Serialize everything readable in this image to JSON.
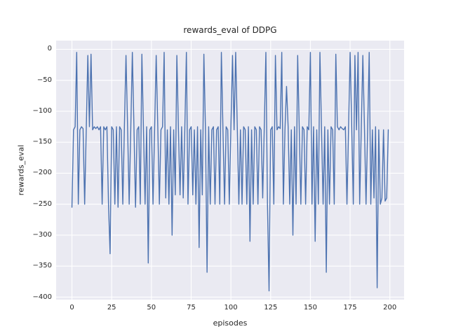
{
  "chart_data": {
    "type": "line",
    "title": "rewards_eval of DDPG",
    "xlabel": "episodes",
    "ylabel": "rewards_eval",
    "legend": null,
    "grid": true,
    "background": "#eaeaf2",
    "line_color": "#4c72b0",
    "xlim": [
      -9.95,
      208.95
    ],
    "ylim": [
      -404,
      14
    ],
    "x_ticks": [
      0,
      25,
      50,
      75,
      100,
      125,
      150,
      175,
      200
    ],
    "x_tick_labels": [
      "0",
      "25",
      "50",
      "75",
      "100",
      "125",
      "150",
      "175",
      "200"
    ],
    "y_ticks": [
      0,
      -50,
      -100,
      -150,
      -200,
      -250,
      -300,
      -350,
      -400
    ],
    "y_tick_labels": [
      "0",
      "−50",
      "−100",
      "−150",
      "−200",
      "−250",
      "−300",
      "−350",
      "−400"
    ],
    "series": [
      {
        "name": "rewards_eval",
        "x_is_index": true,
        "values": [
          -255,
          -130,
          -125,
          -5,
          -250,
          -130,
          -125,
          -128,
          -250,
          -130,
          -10,
          -125,
          -8,
          -130,
          -125,
          -128,
          -125,
          -130,
          -125,
          -250,
          -125,
          -130,
          -125,
          -250,
          -330,
          -125,
          -130,
          -250,
          -125,
          -255,
          -125,
          -130,
          -250,
          -125,
          -10,
          -125,
          -250,
          -130,
          -5,
          -125,
          -255,
          -130,
          -125,
          -250,
          -8,
          -130,
          -250,
          -125,
          -345,
          -130,
          -125,
          -250,
          -130,
          -10,
          -125,
          -250,
          -130,
          -125,
          -5,
          -240,
          -130,
          -250,
          -125,
          -300,
          -130,
          -235,
          -10,
          -130,
          -235,
          -125,
          -240,
          -130,
          -5,
          -250,
          -130,
          -125,
          -235,
          -130,
          -250,
          -125,
          -320,
          -130,
          -235,
          -8,
          -130,
          -360,
          -125,
          -250,
          -130,
          -125,
          -250,
          -130,
          -125,
          -250,
          -5,
          -130,
          -250,
          -125,
          -130,
          -250,
          -125,
          -10,
          -130,
          -5,
          -125,
          -250,
          -130,
          -250,
          -125,
          -130,
          -250,
          -125,
          -310,
          -130,
          -250,
          -125,
          -130,
          -250,
          -125,
          -130,
          -240,
          -125,
          -5,
          -250,
          -390,
          -130,
          -125,
          -250,
          -10,
          -130,
          -125,
          -128,
          -5,
          -250,
          -130,
          -60,
          -125,
          -250,
          -130,
          -300,
          -125,
          -250,
          -10,
          -130,
          -250,
          -125,
          -130,
          -250,
          -125,
          -130,
          -5,
          -250,
          -125,
          -310,
          -130,
          -250,
          -5,
          -130,
          -250,
          -125,
          -360,
          -130,
          -250,
          -125,
          -130,
          -250,
          -8,
          -125,
          -130,
          -125,
          -128,
          -130,
          -125,
          -250,
          -130,
          -5,
          -125,
          -250,
          -10,
          -130,
          -5,
          -250,
          -130,
          -10,
          -125,
          -250,
          -130,
          -5,
          -250,
          -130,
          -240,
          -125,
          -385,
          -130,
          -250,
          -240,
          -130,
          -245,
          -240,
          -130
        ]
      }
    ]
  }
}
